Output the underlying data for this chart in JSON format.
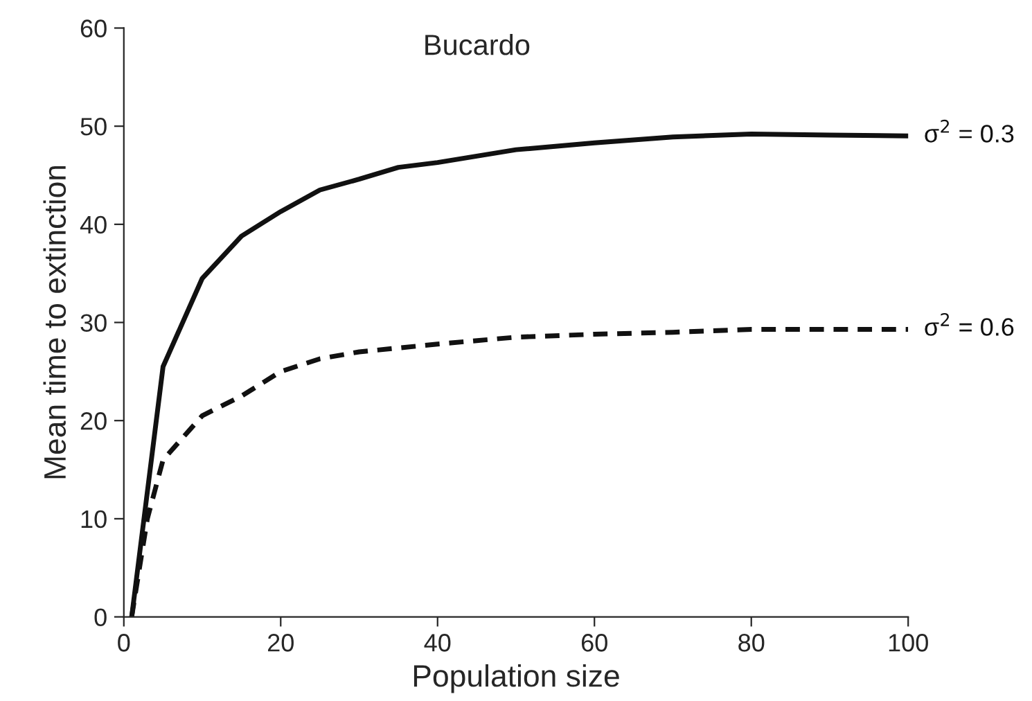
{
  "chart_data": {
    "type": "line",
    "title": "Bucardo",
    "xlabel": "Population size",
    "ylabel": "Mean time to extinction",
    "xlim": [
      0,
      100
    ],
    "ylim": [
      0,
      60
    ],
    "xticks": [
      0,
      20,
      40,
      60,
      80,
      100
    ],
    "yticks": [
      0,
      10,
      20,
      30,
      40,
      50,
      60
    ],
    "grid": false,
    "legend": false,
    "marker": "none",
    "series": [
      {
        "name": "σ$^{2}$ = 0.3",
        "color": "#111111",
        "line_style": "solid",
        "x": [
          1,
          5,
          10,
          15,
          20,
          25,
          30,
          35,
          40,
          50,
          60,
          70,
          80,
          90,
          100
        ],
        "values": [
          0,
          25.5,
          34.5,
          38.8,
          41.3,
          43.5,
          44.6,
          45.8,
          46.3,
          47.6,
          48.3,
          48.9,
          49.2,
          49.1,
          49.0
        ]
      },
      {
        "name": "σ$^{2}$ = 0.6",
        "color": "#111111",
        "line_style": "dashed",
        "x": [
          1,
          3,
          5,
          10,
          15,
          20,
          25,
          30,
          40,
          50,
          60,
          70,
          80,
          100
        ],
        "values": [
          0,
          10,
          16,
          20.5,
          22.5,
          25,
          26.3,
          27,
          27.8,
          28.5,
          28.8,
          29,
          29.3,
          29.3
        ]
      }
    ]
  }
}
